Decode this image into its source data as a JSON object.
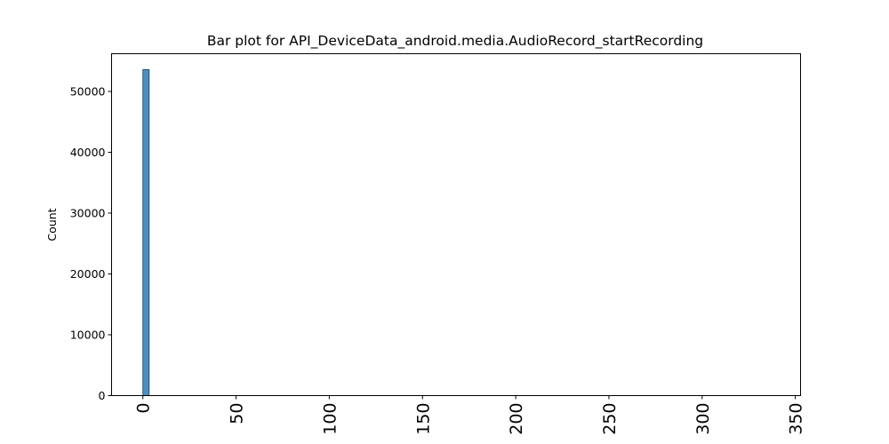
{
  "chart_data": {
    "type": "bar",
    "title": "Bar plot for API_DeviceData_android.media.AudioRecord_startRecording",
    "xlabel": "",
    "ylabel": "Count",
    "xlim": [
      -16.8,
      352.8
    ],
    "ylim": [
      0,
      56200
    ],
    "x_ticks": [
      0,
      50,
      100,
      150,
      200,
      250,
      300,
      350
    ],
    "y_ticks": [
      0,
      10000,
      20000,
      30000,
      40000,
      50000
    ],
    "bars": [
      {
        "x_start": 0,
        "x_end": 3.36,
        "value": 53600
      }
    ],
    "grid": false,
    "bar_color": "#4b8fc3",
    "bar_edge_color": "#1f3a52"
  }
}
